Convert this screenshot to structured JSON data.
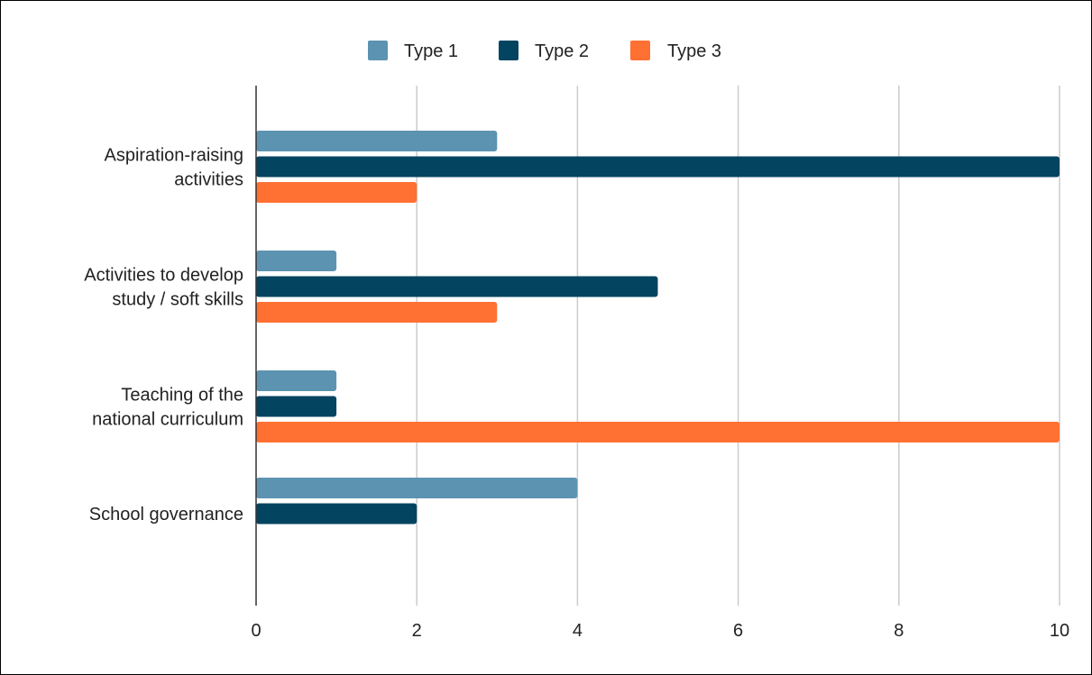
{
  "chart_data": {
    "type": "bar",
    "orientation": "horizontal",
    "categories": [
      [
        "Aspiration-raising",
        "activities"
      ],
      [
        "Activities to develop",
        "study / soft skills"
      ],
      [
        "Teaching of the",
        "national curriculum"
      ],
      [
        "School governance"
      ]
    ],
    "series": [
      {
        "name": "Type 1",
        "color": "#5b93b1",
        "values": [
          3,
          1,
          1,
          4
        ]
      },
      {
        "name": "Type 2",
        "color": "#034460",
        "values": [
          10,
          5,
          1,
          2
        ]
      },
      {
        "name": "Type 3",
        "color": "#ff7033",
        "values": [
          2,
          3,
          10,
          0
        ]
      }
    ],
    "xlim": [
      0,
      10
    ],
    "xticks": [
      0,
      2,
      4,
      6,
      8,
      10
    ],
    "grid": true,
    "legend_position": "top-center",
    "title": "",
    "xlabel": "",
    "ylabel": ""
  }
}
